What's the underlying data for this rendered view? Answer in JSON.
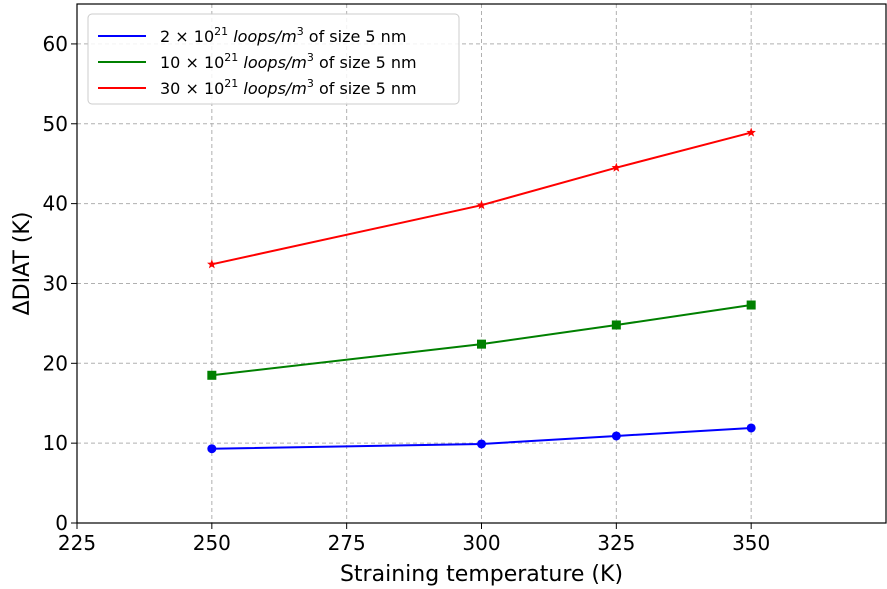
{
  "chart_data": {
    "type": "line",
    "title": "",
    "xlabel": "Straining temperature (K)",
    "ylabel": "ΔDIAT (K)",
    "xlim": [
      225,
      375
    ],
    "ylim": [
      0,
      65
    ],
    "xticks": [
      225,
      250,
      275,
      300,
      325,
      350
    ],
    "yticks": [
      0,
      10,
      20,
      30,
      40,
      50,
      60
    ],
    "grid": true,
    "legend_position": "top-left",
    "series": [
      {
        "name_parts": {
          "prefix": "2 × 10",
          "sup1": "21",
          "mid": " loops/m",
          "sup2": "3",
          "suffix": " of size 5 nm"
        },
        "color": "#0000ff",
        "marker": "circle",
        "x": [
          250,
          300,
          325,
          350
        ],
        "y": [
          9.3,
          9.9,
          10.9,
          11.9
        ]
      },
      {
        "name_parts": {
          "prefix": "10 × 10",
          "sup1": "21",
          "mid": " loops/m",
          "sup2": "3",
          "suffix": " of size 5 nm"
        },
        "color": "#008000",
        "marker": "square",
        "x": [
          250,
          300,
          325,
          350
        ],
        "y": [
          18.5,
          22.4,
          24.8,
          27.3
        ]
      },
      {
        "name_parts": {
          "prefix": "30 × 10",
          "sup1": "21",
          "mid": " loops/m",
          "sup2": "3",
          "suffix": " of size 5 nm"
        },
        "color": "#ff0000",
        "marker": "star",
        "x": [
          250,
          300,
          325,
          350
        ],
        "y": [
          32.4,
          39.8,
          44.5,
          48.9
        ]
      }
    ]
  }
}
